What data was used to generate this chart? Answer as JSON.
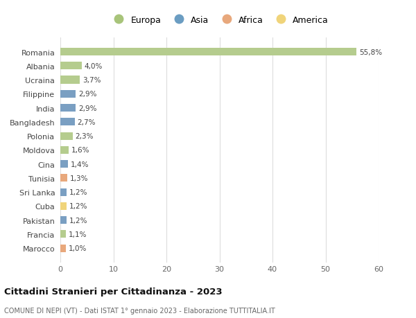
{
  "countries": [
    "Romania",
    "Albania",
    "Ucraina",
    "Filippine",
    "India",
    "Bangladesh",
    "Polonia",
    "Moldova",
    "Cina",
    "Tunisia",
    "Sri Lanka",
    "Cuba",
    "Pakistan",
    "Francia",
    "Marocco"
  ],
  "values": [
    55.8,
    4.0,
    3.7,
    2.9,
    2.9,
    2.7,
    2.3,
    1.6,
    1.4,
    1.3,
    1.2,
    1.2,
    1.2,
    1.1,
    1.0
  ],
  "labels": [
    "55,8%",
    "4,0%",
    "3,7%",
    "2,9%",
    "2,9%",
    "2,7%",
    "2,3%",
    "1,6%",
    "1,4%",
    "1,3%",
    "1,2%",
    "1,2%",
    "1,2%",
    "1,1%",
    "1,0%"
  ],
  "continents": [
    "Europa",
    "Europa",
    "Europa",
    "Asia",
    "Asia",
    "Asia",
    "Europa",
    "Europa",
    "Asia",
    "Africa",
    "Asia",
    "America",
    "Asia",
    "Europa",
    "Africa"
  ],
  "colors": {
    "Europa": "#b5cc8e",
    "Asia": "#7a9fc2",
    "Africa": "#e8a87c",
    "America": "#f0d47a"
  },
  "legend_colors": {
    "Europa": "#a8c47a",
    "Asia": "#6b9dc2",
    "Africa": "#e8a87c",
    "America": "#f0d47a"
  },
  "xlim": [
    0,
    60
  ],
  "xticks": [
    0,
    10,
    20,
    30,
    40,
    50,
    60
  ],
  "title": "Cittadini Stranieri per Cittadinanza - 2023",
  "subtitle": "COMUNE DI NEPI (VT) - Dati ISTAT 1° gennaio 2023 - Elaborazione TUTTITALIA.IT",
  "background_color": "#ffffff",
  "grid_color": "#dddddd",
  "bar_height": 0.55,
  "figsize": [
    6.0,
    4.6
  ],
  "dpi": 100
}
